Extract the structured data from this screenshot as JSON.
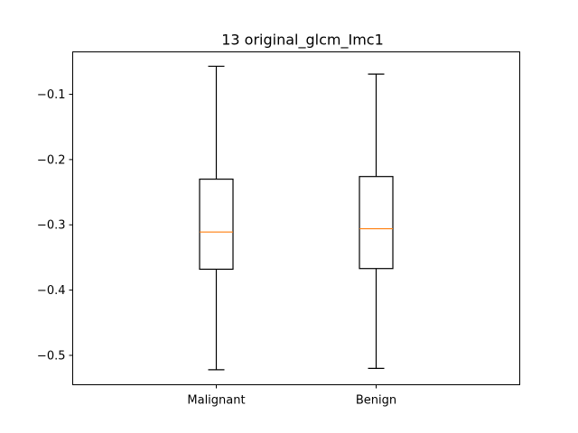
{
  "chart_data": {
    "type": "box",
    "title": "13 original_glcm_Imc1",
    "xlabel": "",
    "ylabel": "",
    "ylim": [
      -0.545,
      -0.035
    ],
    "yticks": [
      -0.5,
      -0.4,
      -0.3,
      -0.2,
      -0.1
    ],
    "ytick_labels": [
      "−0.5",
      "−0.4",
      "−0.3",
      "−0.2",
      "−0.1"
    ],
    "grid": false,
    "categories": [
      "Malignant",
      "Benign"
    ],
    "boxes": [
      {
        "category": "Malignant",
        "whisker_low": -0.522,
        "q1": -0.368,
        "median": -0.311,
        "q3": -0.23,
        "whisker_high": -0.057
      },
      {
        "category": "Benign",
        "whisker_low": -0.52,
        "q1": -0.367,
        "median": -0.306,
        "q3": -0.226,
        "whisker_high": -0.069
      }
    ],
    "colors": {
      "box": "#000000",
      "median": "#ff7f0e"
    }
  }
}
